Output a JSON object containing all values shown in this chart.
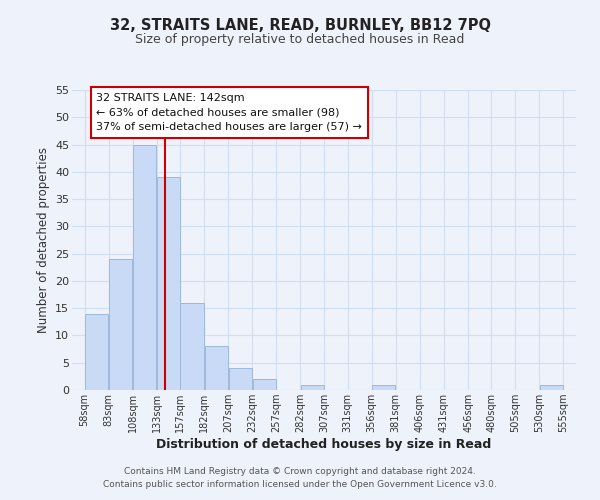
{
  "title": "32, STRAITS LANE, READ, BURNLEY, BB12 7PQ",
  "subtitle": "Size of property relative to detached houses in Read",
  "xlabel": "Distribution of detached houses by size in Read",
  "ylabel": "Number of detached properties",
  "bar_left_edges": [
    58,
    83,
    108,
    133,
    157,
    182,
    207,
    232,
    257,
    282,
    307,
    331,
    356,
    381,
    406,
    431,
    456,
    480,
    505,
    530
  ],
  "bar_heights": [
    14,
    24,
    45,
    39,
    16,
    8,
    4,
    2,
    0,
    1,
    0,
    0,
    1,
    0,
    0,
    0,
    0,
    0,
    0,
    1
  ],
  "bin_width": 25,
  "bar_color": "#c8daf5",
  "bar_edge_color": "#a0b8d8",
  "vline_x": 142,
  "vline_color": "#cc0000",
  "ylim": [
    0,
    55
  ],
  "yticks": [
    0,
    5,
    10,
    15,
    20,
    25,
    30,
    35,
    40,
    45,
    50,
    55
  ],
  "xtick_labels": [
    "58sqm",
    "83sqm",
    "108sqm",
    "133sqm",
    "157sqm",
    "182sqm",
    "207sqm",
    "232sqm",
    "257sqm",
    "282sqm",
    "307sqm",
    "331sqm",
    "356sqm",
    "381sqm",
    "406sqm",
    "431sqm",
    "456sqm",
    "480sqm",
    "505sqm",
    "530sqm",
    "555sqm"
  ],
  "xtick_positions": [
    58,
    83,
    108,
    133,
    157,
    182,
    207,
    232,
    257,
    282,
    307,
    331,
    356,
    381,
    406,
    431,
    456,
    480,
    505,
    530,
    555
  ],
  "annotation_title": "32 STRAITS LANE: 142sqm",
  "annotation_line1": "← 63% of detached houses are smaller (98)",
  "annotation_line2": "37% of semi-detached houses are larger (57) →",
  "grid_color": "#d0dff0",
  "footer_line1": "Contains HM Land Registry data © Crown copyright and database right 2024.",
  "footer_line2": "Contains public sector information licensed under the Open Government Licence v3.0.",
  "background_color": "#eef2fb",
  "xlim_left": 45,
  "xlim_right": 568
}
